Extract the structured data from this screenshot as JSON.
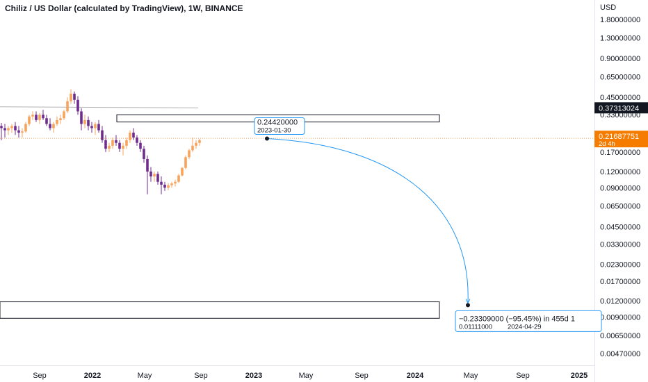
{
  "title": "Chiliz / US Dollar (calculated by TradingView), 1W, BINANCE",
  "currency": "USD",
  "colors": {
    "up": "#f7a35c",
    "down": "#6f2c8f",
    "ma_line": "#b2b2b2",
    "projection": "#2196f3",
    "current_price_bg": "#f57c00",
    "ma_badge_bg": "#131722",
    "price_dotted": "#f7a35c"
  },
  "chart_data": {
    "type": "candlestick",
    "y_scale": "log",
    "y_ticks": [
      "1.80000000",
      "1.30000000",
      "0.90000000",
      "0.65000000",
      "0.45000000",
      "0.33000000",
      "0.17000000",
      "0.12000000",
      "0.09000000",
      "0.06500000",
      "0.04500000",
      "0.03300000",
      "0.02300000",
      "0.01700000",
      "0.01200000",
      "0.00900000",
      "0.00650000",
      "0.00470000"
    ],
    "x_ticks": [
      {
        "label": "Sep",
        "bold": false
      },
      {
        "label": "2022",
        "bold": true
      },
      {
        "label": "May",
        "bold": false
      },
      {
        "label": "Sep",
        "bold": false
      },
      {
        "label": "2023",
        "bold": true
      },
      {
        "label": "May",
        "bold": false
      },
      {
        "label": "Sep",
        "bold": false
      },
      {
        "label": "2024",
        "bold": true
      },
      {
        "label": "May",
        "bold": false
      },
      {
        "label": "Sep",
        "bold": false
      },
      {
        "label": "2025",
        "bold": true
      }
    ],
    "candles": [
      [
        0.27,
        0.285,
        0.21,
        0.26
      ],
      [
        0.26,
        0.28,
        0.22,
        0.25
      ],
      [
        0.25,
        0.27,
        0.23,
        0.26
      ],
      [
        0.26,
        0.28,
        0.24,
        0.27
      ],
      [
        0.27,
        0.29,
        0.23,
        0.25
      ],
      [
        0.25,
        0.27,
        0.22,
        0.24
      ],
      [
        0.24,
        0.26,
        0.22,
        0.245
      ],
      [
        0.245,
        0.29,
        0.24,
        0.28
      ],
      [
        0.28,
        0.33,
        0.27,
        0.32
      ],
      [
        0.32,
        0.35,
        0.3,
        0.33
      ],
      [
        0.33,
        0.35,
        0.29,
        0.3
      ],
      [
        0.3,
        0.34,
        0.28,
        0.33
      ],
      [
        0.33,
        0.36,
        0.3,
        0.31
      ],
      [
        0.31,
        0.33,
        0.27,
        0.28
      ],
      [
        0.28,
        0.31,
        0.25,
        0.26
      ],
      [
        0.26,
        0.29,
        0.24,
        0.28
      ],
      [
        0.28,
        0.32,
        0.27,
        0.3
      ],
      [
        0.3,
        0.33,
        0.28,
        0.31
      ],
      [
        0.31,
        0.36,
        0.3,
        0.35
      ],
      [
        0.35,
        0.45,
        0.34,
        0.42
      ],
      [
        0.42,
        0.52,
        0.4,
        0.48
      ],
      [
        0.48,
        0.5,
        0.4,
        0.43
      ],
      [
        0.43,
        0.46,
        0.33,
        0.35
      ],
      [
        0.35,
        0.37,
        0.25,
        0.28
      ],
      [
        0.28,
        0.33,
        0.26,
        0.3
      ],
      [
        0.3,
        0.32,
        0.25,
        0.27
      ],
      [
        0.27,
        0.29,
        0.24,
        0.26
      ],
      [
        0.26,
        0.29,
        0.23,
        0.28
      ],
      [
        0.28,
        0.3,
        0.24,
        0.25
      ],
      [
        0.25,
        0.27,
        0.2,
        0.21
      ],
      [
        0.21,
        0.23,
        0.17,
        0.18
      ],
      [
        0.18,
        0.2,
        0.17,
        0.19
      ],
      [
        0.19,
        0.22,
        0.18,
        0.21
      ],
      [
        0.21,
        0.23,
        0.19,
        0.2
      ],
      [
        0.2,
        0.21,
        0.17,
        0.18
      ],
      [
        0.18,
        0.2,
        0.16,
        0.19
      ],
      [
        0.19,
        0.22,
        0.18,
        0.21
      ],
      [
        0.21,
        0.25,
        0.2,
        0.24
      ],
      [
        0.24,
        0.26,
        0.21,
        0.22
      ],
      [
        0.22,
        0.23,
        0.19,
        0.2
      ],
      [
        0.2,
        0.21,
        0.17,
        0.18
      ],
      [
        0.18,
        0.19,
        0.14,
        0.15
      ],
      [
        0.15,
        0.16,
        0.08,
        0.12
      ],
      [
        0.12,
        0.13,
        0.1,
        0.11
      ],
      [
        0.11,
        0.12,
        0.1,
        0.115
      ],
      [
        0.115,
        0.12,
        0.095,
        0.1
      ],
      [
        0.1,
        0.11,
        0.08,
        0.095
      ],
      [
        0.095,
        0.1,
        0.085,
        0.09
      ],
      [
        0.09,
        0.098,
        0.086,
        0.094
      ],
      [
        0.094,
        0.1,
        0.09,
        0.097
      ],
      [
        0.097,
        0.104,
        0.092,
        0.1
      ],
      [
        0.1,
        0.115,
        0.098,
        0.112
      ],
      [
        0.112,
        0.13,
        0.11,
        0.128
      ],
      [
        0.128,
        0.16,
        0.125,
        0.155
      ],
      [
        0.155,
        0.18,
        0.15,
        0.175
      ],
      [
        0.175,
        0.22,
        0.17,
        0.19
      ],
      [
        0.19,
        0.21,
        0.18,
        0.2
      ],
      [
        0.2,
        0.215,
        0.19,
        0.21
      ]
    ],
    "ma_series": [
      [
        0,
        0.38
      ],
      [
        1.0,
        0.373
      ]
    ],
    "current_price": "0.21687751",
    "current_price_countdown": "2d 4h",
    "ma_value": "0.37313024",
    "projection": {
      "start_price": "0.24420000",
      "start_date": "2023-01-30",
      "end_price": "0.01111000",
      "end_date": "2024-04-29",
      "change_text": "−0.23309000 (−95.45%) in 455d 1"
    },
    "zones": [
      {
        "price_low": 0.29,
        "price_high": 0.33
      },
      {
        "price_low": 0.0088,
        "price_high": 0.0118
      }
    ]
  }
}
